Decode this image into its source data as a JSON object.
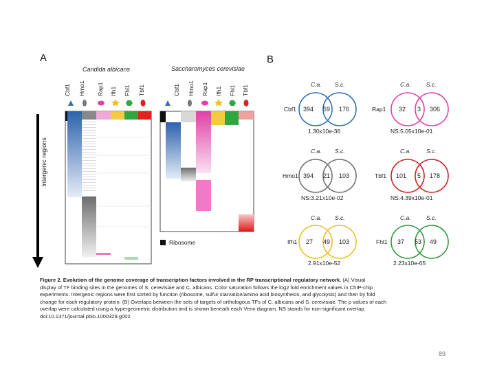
{
  "panel_a": {
    "label": "A",
    "species_ca": "Candida albicans",
    "species_sc": "Saccharomyces cerevisiae",
    "tfs": [
      "Cbf1",
      "Hmo1",
      "Rap1",
      "Ifh1",
      "Fhl1",
      "Tbf1"
    ],
    "axis_label": "Intergenic regions",
    "legend": "Ribosome",
    "colors": {
      "Cbf1": "#3a6fb5",
      "Hmo1": "#777777",
      "Rap1": "#e040a8",
      "Ifh1": "#f0c020",
      "Fhl1": "#2fa640",
      "Tbf1": "#e02020"
    }
  },
  "panel_b": {
    "label": "B",
    "head_ca": "C.a.",
    "head_sc": "S.c.",
    "venns": [
      {
        "tf": "Cbf1",
        "left": "394",
        "mid": "59",
        "right": "176",
        "pval": "1.30x10e-36",
        "color": "#2f6db5"
      },
      {
        "tf": "Rap1",
        "left": "32",
        "mid": "3",
        "right": "306",
        "pval": "NS:5.05x10e-01",
        "color": "#e040a8"
      },
      {
        "tf": "Hmo1",
        "left": "394",
        "mid": "21",
        "right": "103",
        "pval": "NS:3.21x10e-02",
        "color": "#707070"
      },
      {
        "tf": "Tbf1",
        "left": "101",
        "mid": "5",
        "right": "178",
        "pval": "NS:4.39x10e-01",
        "color": "#cc2222"
      },
      {
        "tf": "Ifh1",
        "left": "27",
        "mid": "49",
        "right": "103",
        "pval": "2.91x10e-52",
        "color": "#e8c020"
      },
      {
        "tf": "Fhl1",
        "left": "37",
        "mid": "53",
        "right": "49",
        "pval": "2.23x10e-65",
        "color": "#2e9a3a"
      }
    ]
  },
  "caption": {
    "title": "Figure 2. Evolution of the genome coverage of transcription factors involved in the RP transcriptional regulatory network.",
    "lines": [
      "(A) Visual",
      "display of TF binding sites in the genomes of S. cerevisiae and C. albicans. Color saturation follows the log2 fold enrichment values in ChIP-chip",
      "experiments. Intergenic regions were first sorted by function (ribosome, sulfur starvation/amino acid biosynthesis, and glycolysis) and then by fold",
      "change for each regulatory protein. (B) Overlaps between the sets of targets of orthologous TFs of C. albicans and S. cerevisiae. The p values of each",
      "overlap were calculated using a hypergeometric distribution and is shown beneath each Venn diagram. NS stands for non-significant overlap.",
      "doi:10.1371/journal.pbio.1000329.g002"
    ]
  },
  "page_number": "89"
}
